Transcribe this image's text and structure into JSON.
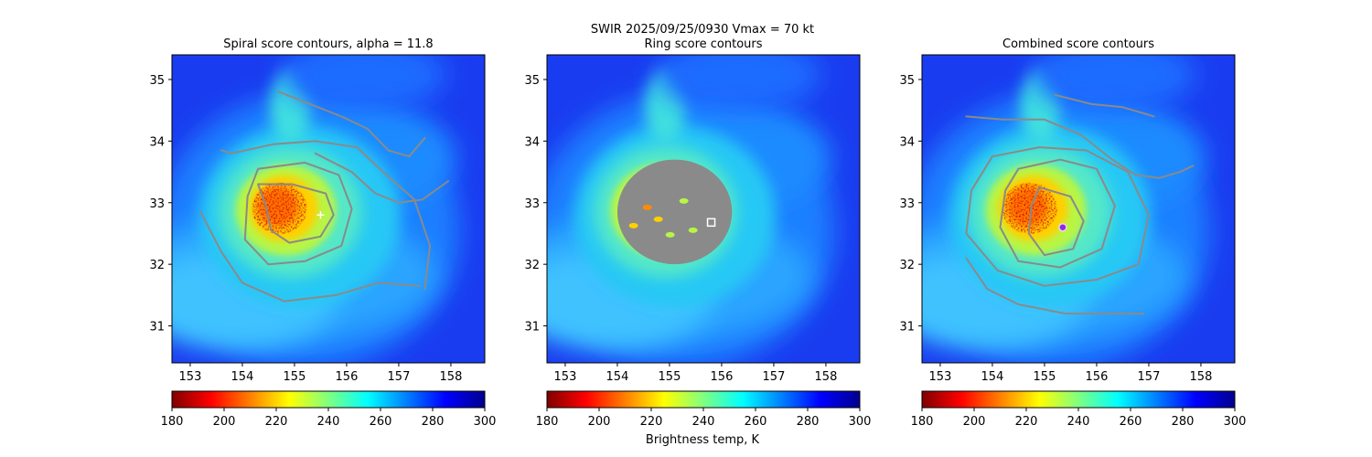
{
  "figure": {
    "suptitle_line1": "SWIR  2025/09/25/0930    Vmax = 70 kt",
    "colorbar_label": "Brightness temp, K",
    "colors": {
      "contour": "#8a8a8a",
      "frame": "#000000"
    },
    "colormap": "jet_r"
  },
  "chart_data": [
    {
      "type": "heatmap",
      "title": "Spiral score contours, alpha = 11.8",
      "xlim": [
        152.65,
        158.65
      ],
      "ylim": [
        30.4,
        35.4
      ],
      "xticks": [
        153,
        154,
        155,
        156,
        157,
        158
      ],
      "yticks": [
        31,
        32,
        33,
        34,
        35
      ],
      "colorbar": {
        "vmin": 180,
        "vmax": 300,
        "ticks": [
          180,
          200,
          220,
          240,
          260,
          280,
          300
        ]
      },
      "value_range": [
        180,
        300
      ],
      "marker": {
        "type": "plus",
        "lon": 155.5,
        "lat": 32.8,
        "color": "#ffffff"
      },
      "contours": [
        [
          [
            154.3,
            33.3
          ],
          [
            154.95,
            33.3
          ],
          [
            155.6,
            33.15
          ],
          [
            155.75,
            32.8
          ],
          [
            155.5,
            32.45
          ],
          [
            154.9,
            32.35
          ],
          [
            154.55,
            32.55
          ],
          [
            154.45,
            32.95
          ],
          [
            154.3,
            33.3
          ]
        ],
        [
          [
            154.3,
            33.55
          ],
          [
            155.2,
            33.65
          ],
          [
            155.85,
            33.45
          ],
          [
            156.1,
            32.9
          ],
          [
            155.9,
            32.3
          ],
          [
            155.2,
            32.05
          ],
          [
            154.5,
            32.0
          ],
          [
            154.05,
            32.4
          ],
          [
            154.1,
            33.1
          ],
          [
            154.3,
            33.55
          ]
        ],
        [
          [
            153.6,
            33.85
          ],
          [
            153.8,
            33.8
          ],
          [
            154.6,
            33.95
          ],
          [
            155.4,
            34.0
          ],
          [
            156.2,
            33.9
          ],
          [
            156.7,
            33.5
          ],
          [
            157.3,
            33.05
          ],
          [
            157.6,
            32.3
          ],
          [
            157.5,
            31.6
          ]
        ],
        [
          [
            153.2,
            32.85
          ],
          [
            153.6,
            32.2
          ],
          [
            154.0,
            31.7
          ],
          [
            154.8,
            31.4
          ],
          [
            155.8,
            31.5
          ],
          [
            156.6,
            31.7
          ],
          [
            157.4,
            31.65
          ]
        ],
        [
          [
            155.4,
            33.8
          ],
          [
            156.1,
            33.5
          ],
          [
            156.55,
            33.15
          ],
          [
            157.0,
            33.0
          ],
          [
            157.45,
            33.05
          ],
          [
            157.95,
            33.35
          ]
        ],
        [
          [
            154.7,
            34.8
          ],
          [
            155.3,
            34.6
          ],
          [
            155.9,
            34.4
          ],
          [
            156.4,
            34.2
          ],
          [
            156.8,
            33.85
          ],
          [
            157.2,
            33.75
          ],
          [
            157.5,
            34.05
          ]
        ]
      ]
    },
    {
      "type": "heatmap",
      "title": "Ring score contours",
      "xlim": [
        152.65,
        158.65
      ],
      "ylim": [
        30.4,
        35.4
      ],
      "xticks": [
        153,
        154,
        155,
        156,
        157,
        158
      ],
      "yticks": [
        31,
        32,
        33,
        34,
        35
      ],
      "colorbar": {
        "vmin": 180,
        "vmax": 300,
        "ticks": [
          180,
          200,
          220,
          240,
          260,
          280,
          300
        ]
      },
      "value_range": [
        180,
        300
      ],
      "marker": {
        "type": "square",
        "lon": 155.8,
        "lat": 32.68,
        "color": "#ffffff"
      },
      "filled_region": {
        "lon": 155.1,
        "lat": 32.85,
        "rx_deg": 1.1,
        "ry_deg": 0.85,
        "color": "#8a8a8a"
      }
    },
    {
      "type": "heatmap",
      "title": "Combined score contours",
      "xlim": [
        152.65,
        158.65
      ],
      "ylim": [
        30.4,
        35.4
      ],
      "xticks": [
        153,
        154,
        155,
        156,
        157,
        158
      ],
      "yticks": [
        31,
        32,
        33,
        34,
        35
      ],
      "colorbar": {
        "vmin": 180,
        "vmax": 300,
        "ticks": [
          180,
          200,
          220,
          240,
          260,
          280,
          300
        ]
      },
      "value_range": [
        180,
        300
      ],
      "marker": {
        "type": "circle",
        "lon": 155.35,
        "lat": 32.6,
        "color": "#8c2be2"
      },
      "contours": [
        [
          [
            154.9,
            33.25
          ],
          [
            155.5,
            33.1
          ],
          [
            155.75,
            32.7
          ],
          [
            155.55,
            32.25
          ],
          [
            155.0,
            32.15
          ],
          [
            154.7,
            32.5
          ],
          [
            154.75,
            32.95
          ],
          [
            154.9,
            33.25
          ]
        ],
        [
          [
            154.5,
            33.55
          ],
          [
            155.3,
            33.7
          ],
          [
            156.0,
            33.55
          ],
          [
            156.35,
            32.95
          ],
          [
            156.1,
            32.25
          ],
          [
            155.3,
            31.95
          ],
          [
            154.5,
            32.05
          ],
          [
            154.15,
            32.6
          ],
          [
            154.25,
            33.2
          ],
          [
            154.5,
            33.55
          ]
        ],
        [
          [
            154.0,
            33.75
          ],
          [
            154.9,
            33.9
          ],
          [
            155.8,
            33.85
          ],
          [
            156.6,
            33.5
          ],
          [
            157.0,
            32.8
          ],
          [
            156.8,
            32.0
          ],
          [
            156.0,
            31.75
          ],
          [
            155.0,
            31.65
          ],
          [
            154.1,
            31.9
          ],
          [
            153.5,
            32.5
          ],
          [
            153.6,
            33.2
          ],
          [
            154.0,
            33.75
          ]
        ],
        [
          [
            153.5,
            32.1
          ],
          [
            153.9,
            31.6
          ],
          [
            154.5,
            31.35
          ],
          [
            155.4,
            31.2
          ],
          [
            156.3,
            31.2
          ],
          [
            156.9,
            31.2
          ]
        ],
        [
          [
            153.5,
            34.4
          ],
          [
            154.2,
            34.35
          ],
          [
            155.0,
            34.35
          ],
          [
            155.7,
            34.1
          ],
          [
            156.3,
            33.7
          ],
          [
            156.75,
            33.45
          ],
          [
            157.2,
            33.4
          ],
          [
            157.6,
            33.5
          ],
          [
            157.85,
            33.6
          ]
        ],
        [
          [
            155.2,
            34.75
          ],
          [
            155.9,
            34.6
          ],
          [
            156.5,
            34.55
          ],
          [
            156.9,
            34.45
          ],
          [
            157.1,
            34.4
          ]
        ]
      ]
    }
  ]
}
